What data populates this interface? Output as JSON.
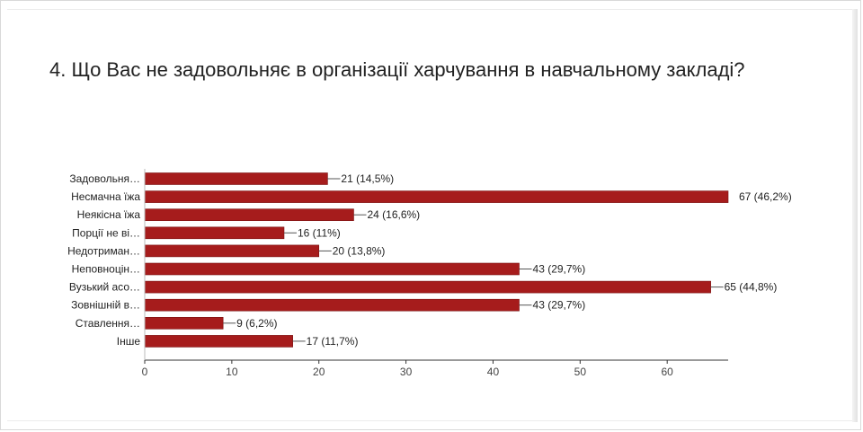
{
  "question": {
    "title": "4. Що Вас не задовольняє в організації харчування в навчальному закладі?"
  },
  "chart_data": {
    "type": "bar",
    "orientation": "horizontal",
    "categories": [
      "Задовольня…",
      "Несмачна їжа",
      "Неякісна їжа",
      "Порції не ві…",
      "Недотриман…",
      "Неповноцін…",
      "Вузький асо…",
      "Зовнішній в…",
      "Ставлення…",
      "Інше"
    ],
    "values": [
      21,
      67,
      24,
      16,
      20,
      43,
      65,
      43,
      9,
      17
    ],
    "data_labels": [
      "21 (14,5%)",
      "67 (46,2%)",
      "24 (16,6%)",
      "16 (11%)",
      "20 (13,8%)",
      "43 (29,7%)",
      "65 (44,8%)",
      "43 (29,7%)",
      "9 (6,2%)",
      "17 (11,7%)"
    ],
    "x_ticks": [
      0,
      10,
      20,
      30,
      40,
      50,
      60
    ],
    "xlim": [
      0,
      67
    ],
    "bar_color": "#a61c1c",
    "grid": false,
    "legend": "none"
  }
}
